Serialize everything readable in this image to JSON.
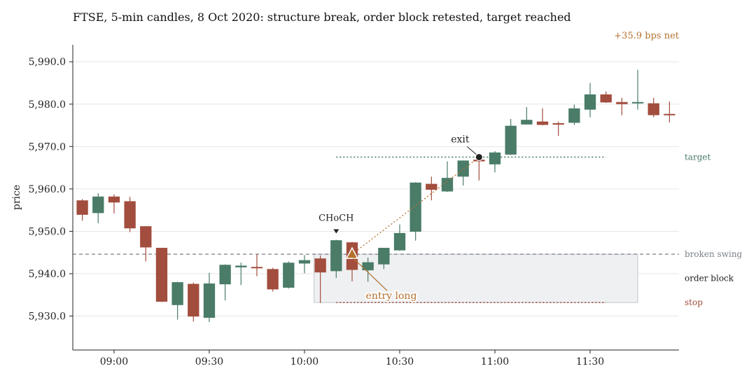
{
  "chart_data": {
    "type": "candlestick",
    "title": "FTSE, 5-min candles, 8 Oct 2020: structure break, order block retested, target reached",
    "ylabel": "price",
    "xlabel": "",
    "ylim": [
      5922,
      5994
    ],
    "xlim": [
      "08:47",
      "11:45"
    ],
    "grid": "horizontal",
    "y_ticks": [
      5930,
      5940,
      5950,
      5960,
      5970,
      5980,
      5990
    ],
    "y_tick_labels": [
      "5,930.0",
      "5,940.0",
      "5,950.0",
      "5,960.0",
      "5,970.0",
      "5,980.0",
      "5,990.0"
    ],
    "x_ticks": [
      "09:00",
      "09:30",
      "10:00",
      "10:30",
      "11:00",
      "11:30"
    ],
    "net_label": "+35.9 bps net",
    "candles": [
      {
        "t": "08:50",
        "open": 5957.3,
        "high": 5957.6,
        "low": 5952.5,
        "close": 5953.9
      },
      {
        "t": "08:55",
        "open": 5954.3,
        "high": 5959.0,
        "low": 5951.9,
        "close": 5958.2
      },
      {
        "t": "09:00",
        "open": 5958.2,
        "high": 5958.7,
        "low": 5954.2,
        "close": 5956.8
      },
      {
        "t": "09:05",
        "open": 5957.1,
        "high": 5958.1,
        "low": 5949.8,
        "close": 5950.7
      },
      {
        "t": "09:10",
        "open": 5951.2,
        "high": 5951.2,
        "low": 5942.9,
        "close": 5946.2
      },
      {
        "t": "09:15",
        "open": 5946.1,
        "high": 5946.1,
        "low": 5933.3,
        "close": 5933.4
      },
      {
        "t": "09:20",
        "open": 5932.6,
        "high": 5938.1,
        "low": 5929.2,
        "close": 5938.0
      },
      {
        "t": "09:25",
        "open": 5937.6,
        "high": 5937.9,
        "low": 5928.7,
        "close": 5929.9
      },
      {
        "t": "09:30",
        "open": 5929.6,
        "high": 5940.2,
        "low": 5928.6,
        "close": 5937.7
      },
      {
        "t": "09:35",
        "open": 5937.5,
        "high": 5942.2,
        "low": 5933.7,
        "close": 5942.1
      },
      {
        "t": "09:40",
        "open": 5941.5,
        "high": 5942.6,
        "low": 5937.3,
        "close": 5941.9
      },
      {
        "t": "09:45",
        "open": 5941.6,
        "high": 5944.6,
        "low": 5939.4,
        "close": 5941.3
      },
      {
        "t": "09:50",
        "open": 5941.1,
        "high": 5941.4,
        "low": 5935.8,
        "close": 5936.3
      },
      {
        "t": "09:55",
        "open": 5936.7,
        "high": 5942.9,
        "low": 5936.5,
        "close": 5942.6
      },
      {
        "t": "10:00",
        "open": 5942.4,
        "high": 5944.4,
        "low": 5940.1,
        "close": 5943.2
      },
      {
        "t": "10:05",
        "open": 5943.6,
        "high": 5944.3,
        "low": 5933.1,
        "close": 5940.3
      },
      {
        "t": "10:10",
        "open": 5940.6,
        "high": 5948.0,
        "low": 5939.0,
        "close": 5947.9
      },
      {
        "t": "10:15",
        "open": 5947.4,
        "high": 5947.5,
        "low": 5938.2,
        "close": 5940.9
      },
      {
        "t": "10:20",
        "open": 5940.8,
        "high": 5943.8,
        "low": 5938.1,
        "close": 5942.7
      },
      {
        "t": "10:25",
        "open": 5942.2,
        "high": 5946.1,
        "low": 5941.1,
        "close": 5946.1
      },
      {
        "t": "10:30",
        "open": 5945.5,
        "high": 5951.6,
        "low": 5945.4,
        "close": 5949.6
      },
      {
        "t": "10:35",
        "open": 5949.9,
        "high": 5961.6,
        "low": 5947.8,
        "close": 5961.5
      },
      {
        "t": "10:40",
        "open": 5961.2,
        "high": 5962.9,
        "low": 5957.3,
        "close": 5959.8
      },
      {
        "t": "10:45",
        "open": 5959.4,
        "high": 5966.5,
        "low": 5959.3,
        "close": 5962.6
      },
      {
        "t": "10:50",
        "open": 5962.9,
        "high": 5966.7,
        "low": 5960.8,
        "close": 5966.7
      },
      {
        "t": "10:55",
        "open": 5966.9,
        "high": 5967.5,
        "low": 5962.0,
        "close": 5966.5
      },
      {
        "t": "11:00",
        "open": 5965.8,
        "high": 5968.9,
        "low": 5963.9,
        "close": 5968.6
      },
      {
        "t": "11:05",
        "open": 5968.1,
        "high": 5976.5,
        "low": 5968.0,
        "close": 5974.9
      },
      {
        "t": "11:10",
        "open": 5975.2,
        "high": 5979.3,
        "low": 5975.2,
        "close": 5976.3
      },
      {
        "t": "11:15",
        "open": 5975.9,
        "high": 5979.0,
        "low": 5975.0,
        "close": 5975.1
      },
      {
        "t": "11:20",
        "open": 5975.5,
        "high": 5975.9,
        "low": 5972.5,
        "close": 5975.3
      },
      {
        "t": "11:25",
        "open": 5975.6,
        "high": 5979.9,
        "low": 5975.1,
        "close": 5979.0
      },
      {
        "t": "11:30",
        "open": 5978.7,
        "high": 5985.0,
        "low": 5976.9,
        "close": 5982.3
      },
      {
        "t": "11:35",
        "open": 5982.3,
        "high": 5983.0,
        "low": 5980.3,
        "close": 5980.4
      },
      {
        "t": "11:40",
        "open": 5980.5,
        "high": 5981.5,
        "low": 5977.4,
        "close": 5980.0
      },
      {
        "t": "11:45",
        "open": 5980.2,
        "high": 5988.1,
        "low": 5978.7,
        "close": 5980.5
      },
      {
        "t": "11:50",
        "open": 5980.2,
        "high": 5981.5,
        "low": 5976.9,
        "close": 5977.4
      },
      {
        "t": "11:55",
        "open": 5977.7,
        "high": 5980.6,
        "low": 5975.7,
        "close": 5977.4
      }
    ],
    "levels": {
      "broken_swing": {
        "label": "broken swing",
        "price": 5944.6
      },
      "target": {
        "label": "target",
        "price": 5967.5,
        "from": "10:10",
        "to": "11:35"
      },
      "stop": {
        "label": "stop",
        "price": 5933.2,
        "from": "10:10",
        "to": "11:35"
      }
    },
    "order_block": {
      "label": "order block",
      "from": "10:03",
      "to": "11:45",
      "low": 5933.2,
      "high": 5944.6
    },
    "annotations": {
      "choch": {
        "label": "CHoCH",
        "t": "10:10",
        "price": 5949.5
      },
      "entry": {
        "label": "entry long",
        "t": "10:15",
        "price": 5944.6
      },
      "exit": {
        "label": "exit",
        "t": "10:55",
        "price": 5967.5
      }
    },
    "colors": {
      "up": "#4a7c68",
      "down": "#a24d3d",
      "accent": "#b4702f",
      "grey": "#7a8088",
      "zone": "#eef0f2",
      "target": "#4a7c68",
      "stop": "#a24d3d",
      "text": "#222222"
    }
  }
}
